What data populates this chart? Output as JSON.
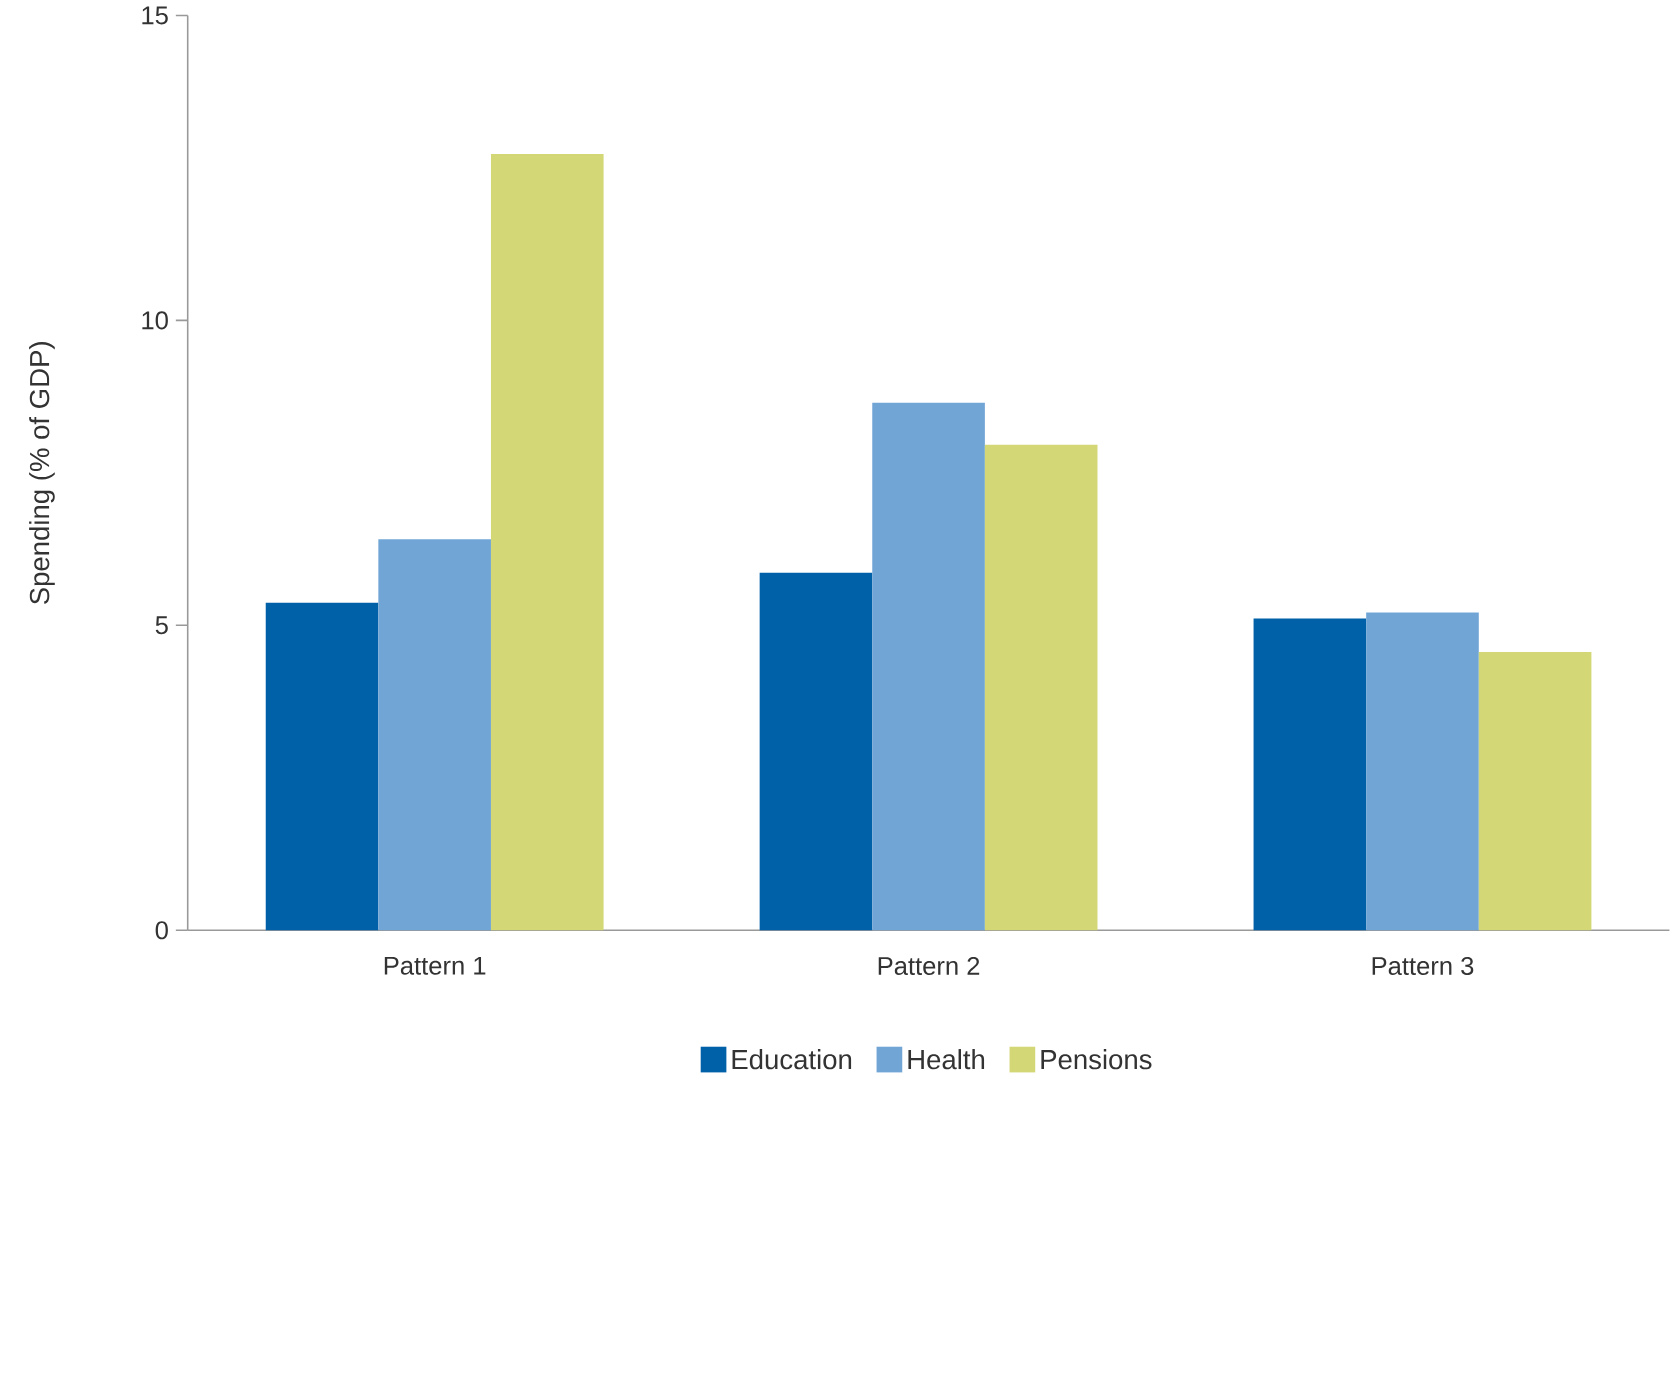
{
  "chart_data": {
    "type": "bar",
    "ylabel": "Spending (% of GDP)",
    "categories": [
      "Pattern 1",
      "Pattern 2",
      "Pattern 3"
    ],
    "series": [
      {
        "name": "Education",
        "color": "#0060a8",
        "values": [
          5.37,
          5.86,
          5.11
        ]
      },
      {
        "name": "Health",
        "color": "#70a5d6",
        "values": [
          6.41,
          8.65,
          5.21
        ]
      },
      {
        "name": "Pensions",
        "color": "#d3d775",
        "values": [
          12.73,
          7.96,
          4.56
        ]
      }
    ],
    "ylim": [
      0,
      15
    ],
    "yticks": [
      0,
      5,
      10,
      15
    ],
    "grid": false,
    "legend": "bottom"
  }
}
